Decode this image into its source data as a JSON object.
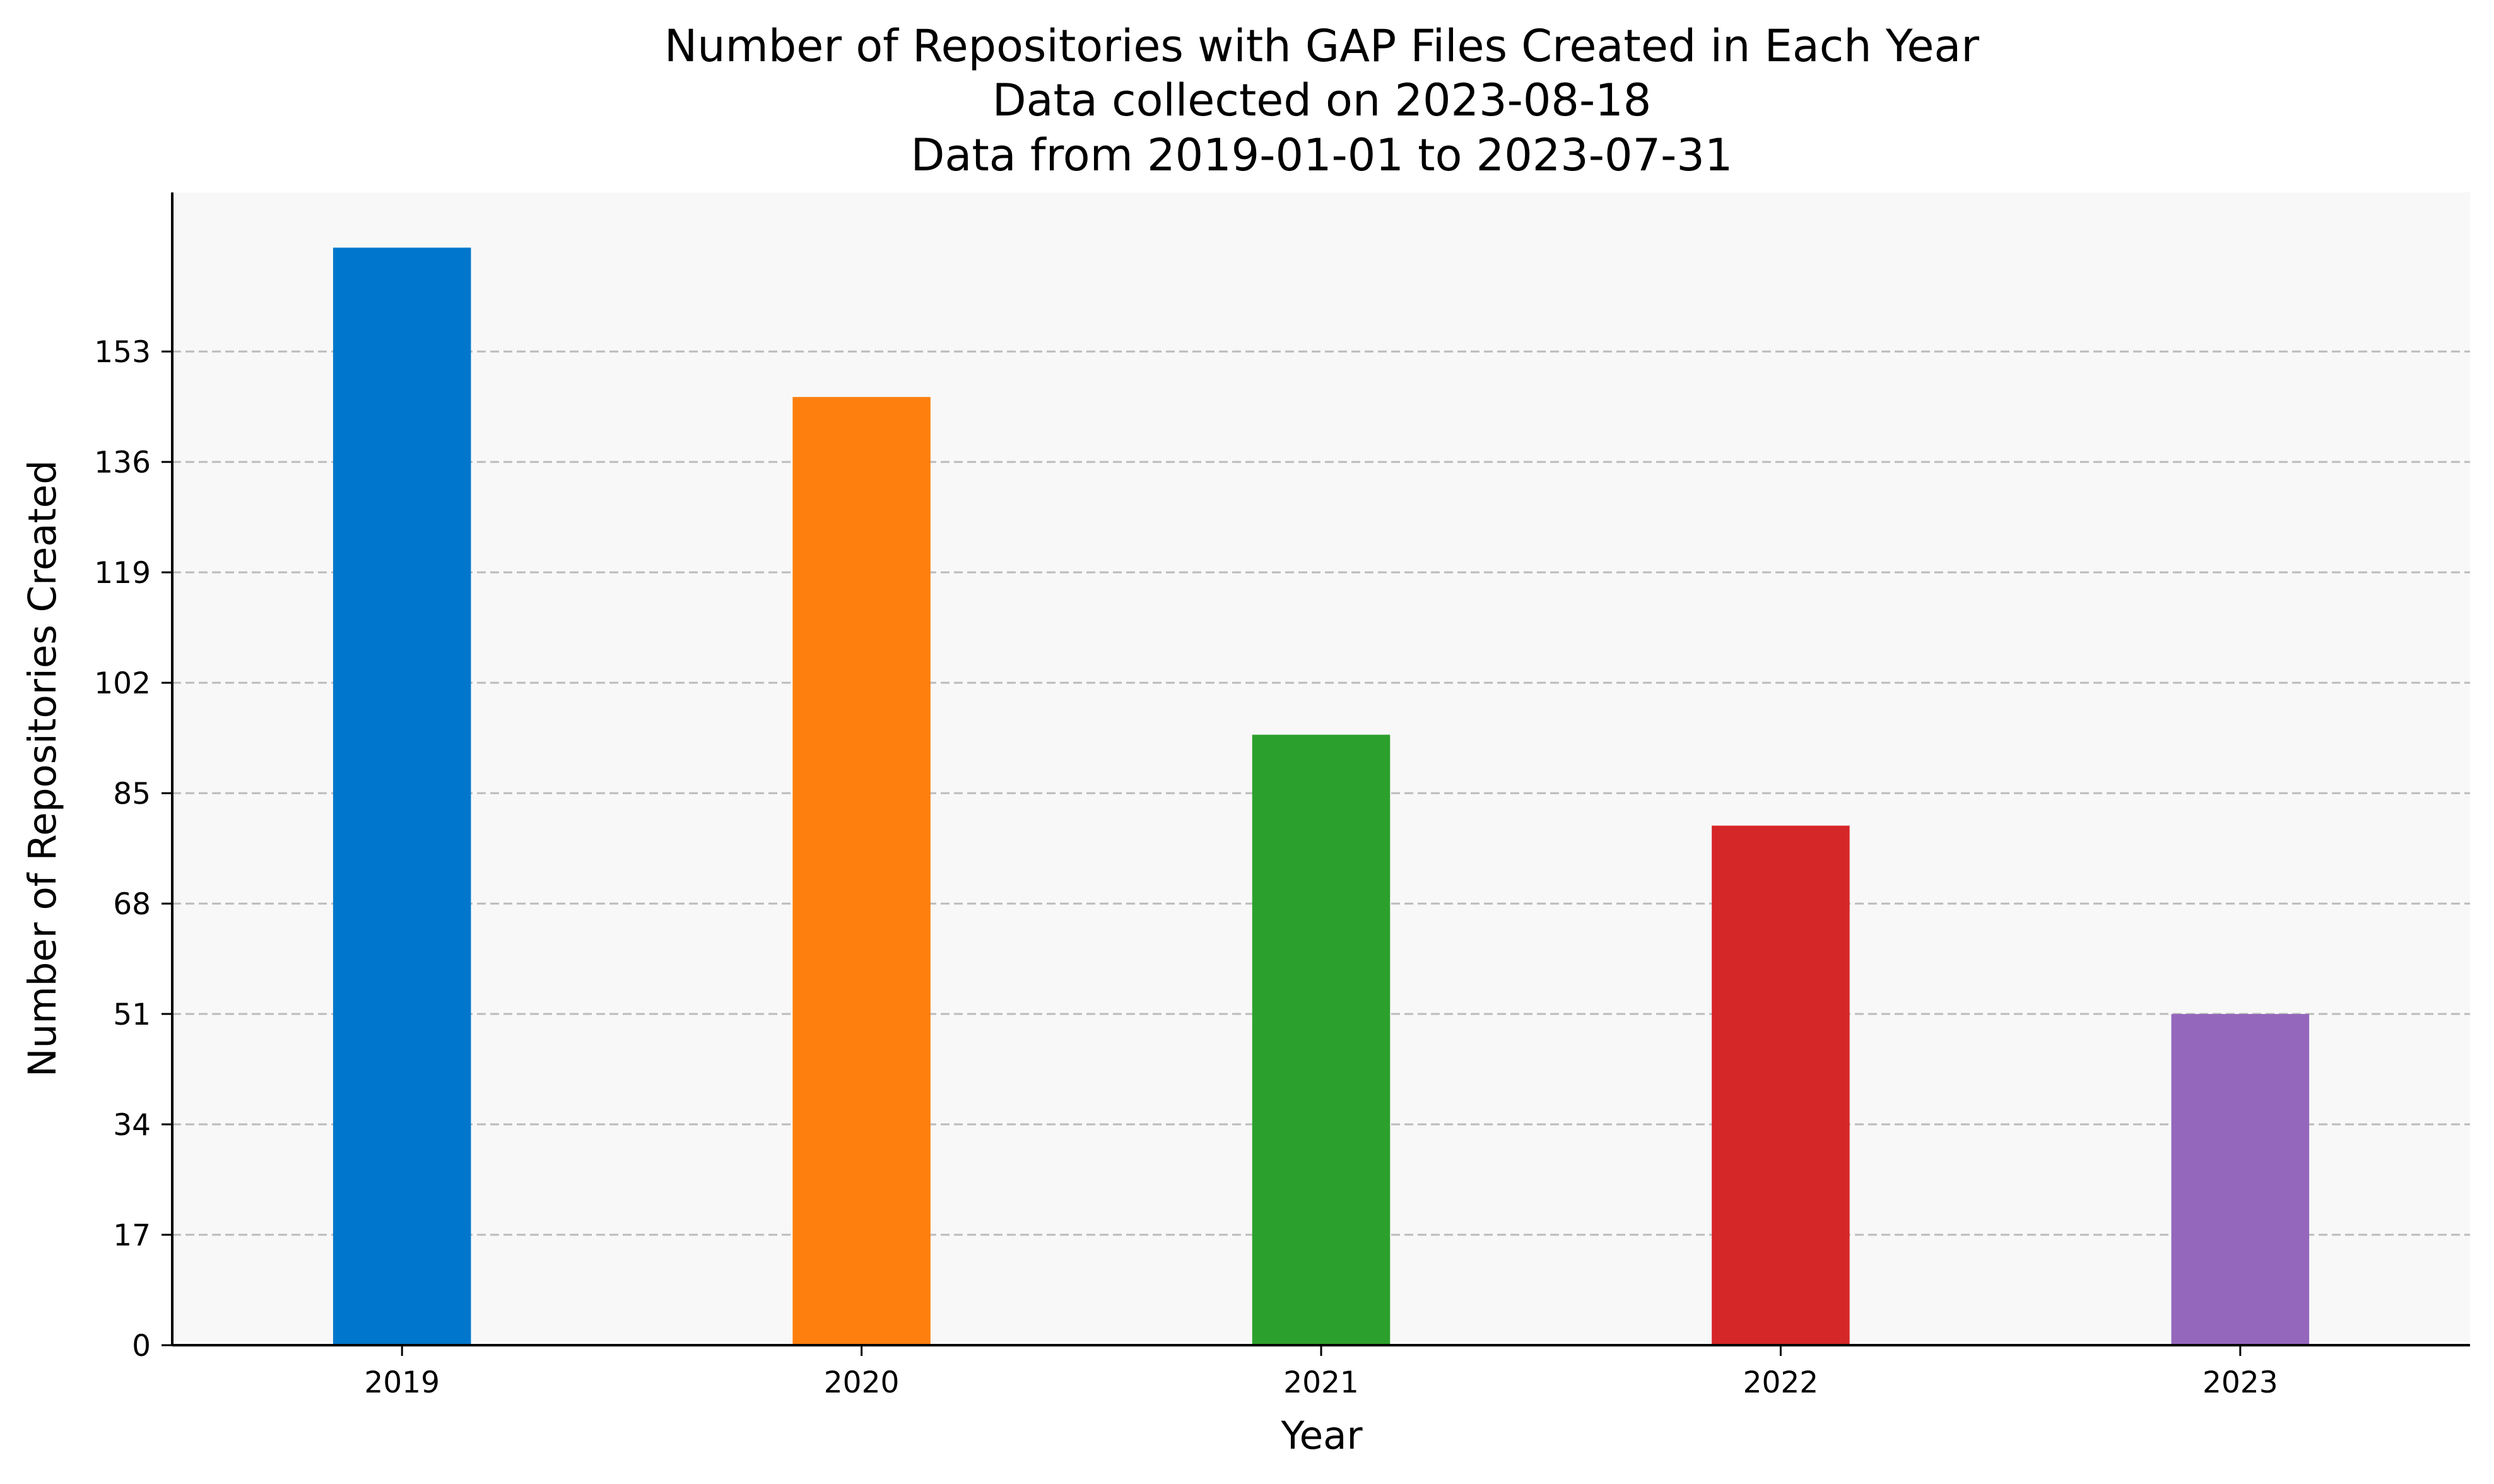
{
  "chart_data": {
    "type": "bar",
    "title": [
      "Number of Repositories with GAP Files Created in Each Year",
      "Data collected on 2023-08-18",
      "Data from 2019-01-01 to 2023-07-31"
    ],
    "xlabel": "Year",
    "ylabel": "Number of Repositories Created",
    "categories": [
      "2019",
      "2020",
      "2021",
      "2022",
      "2023"
    ],
    "values": [
      169,
      146,
      94,
      80,
      51
    ],
    "colors": [
      "#0077cc",
      "#ff7f0e",
      "#2ca02c",
      "#d62728",
      "#9467bd"
    ],
    "yticks": [
      0,
      17,
      34,
      51,
      68,
      85,
      102,
      119,
      136,
      153
    ],
    "ylim": [
      0,
      177.5
    ],
    "grid": "horizontal-dashed",
    "background_color": "#f8f8f8",
    "grid_color": "#bbbbbb",
    "legend": "none"
  }
}
